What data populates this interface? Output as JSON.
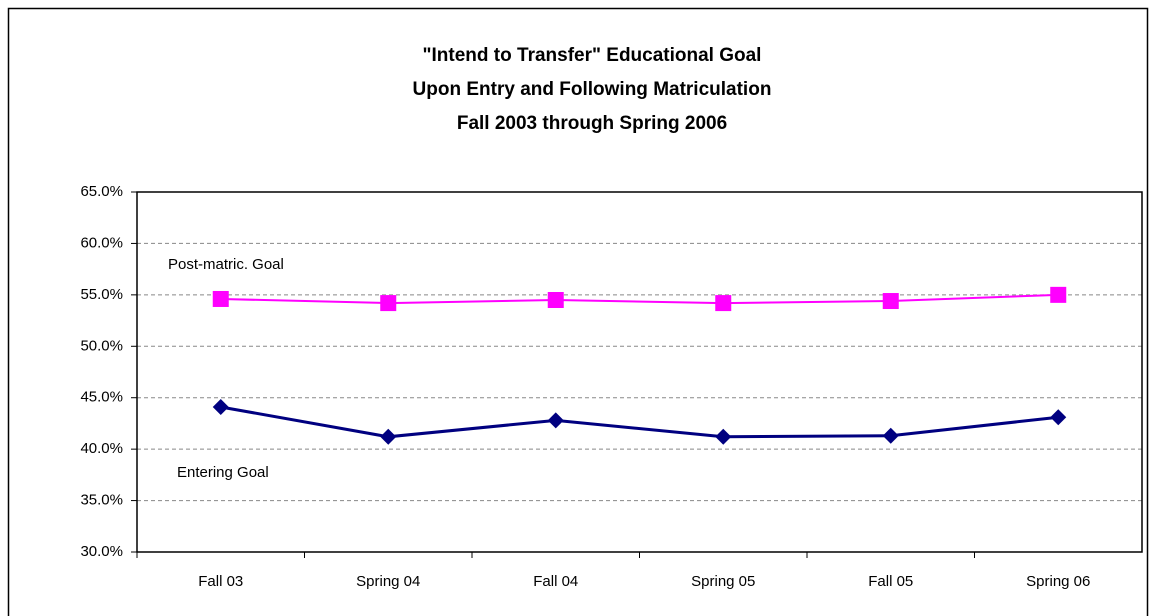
{
  "chart_data": {
    "type": "line",
    "title": [
      "\"Intend to Transfer\" Educational Goal",
      "Upon Entry and Following Matriculation",
      "Fall 2003 through Spring 2006"
    ],
    "categories": [
      "Fall 03",
      "Spring 04",
      "Fall 04",
      "Spring 05",
      "Fall 05",
      "Spring 06"
    ],
    "series": [
      {
        "name": "Post-matric. Goal",
        "color": "#ff00ff",
        "marker": "square",
        "values": [
          54.6,
          54.2,
          54.5,
          54.2,
          54.4,
          55.0
        ]
      },
      {
        "name": "Entering Goal",
        "color": "#000080",
        "marker": "diamond",
        "values": [
          44.1,
          41.2,
          42.8,
          41.2,
          41.3,
          43.1
        ]
      }
    ],
    "ylim": [
      30,
      65
    ],
    "yticks": [
      {
        "value": 30,
        "label": "30.0%"
      },
      {
        "value": 35,
        "label": "35.0%"
      },
      {
        "value": 40,
        "label": "40.0%"
      },
      {
        "value": 45,
        "label": "45.0%"
      },
      {
        "value": 50,
        "label": "50.0%"
      },
      {
        "value": 55,
        "label": "55.0%"
      },
      {
        "value": 60,
        "label": "60.0%"
      },
      {
        "value": 65,
        "label": "65.0%"
      }
    ],
    "grid": true
  }
}
